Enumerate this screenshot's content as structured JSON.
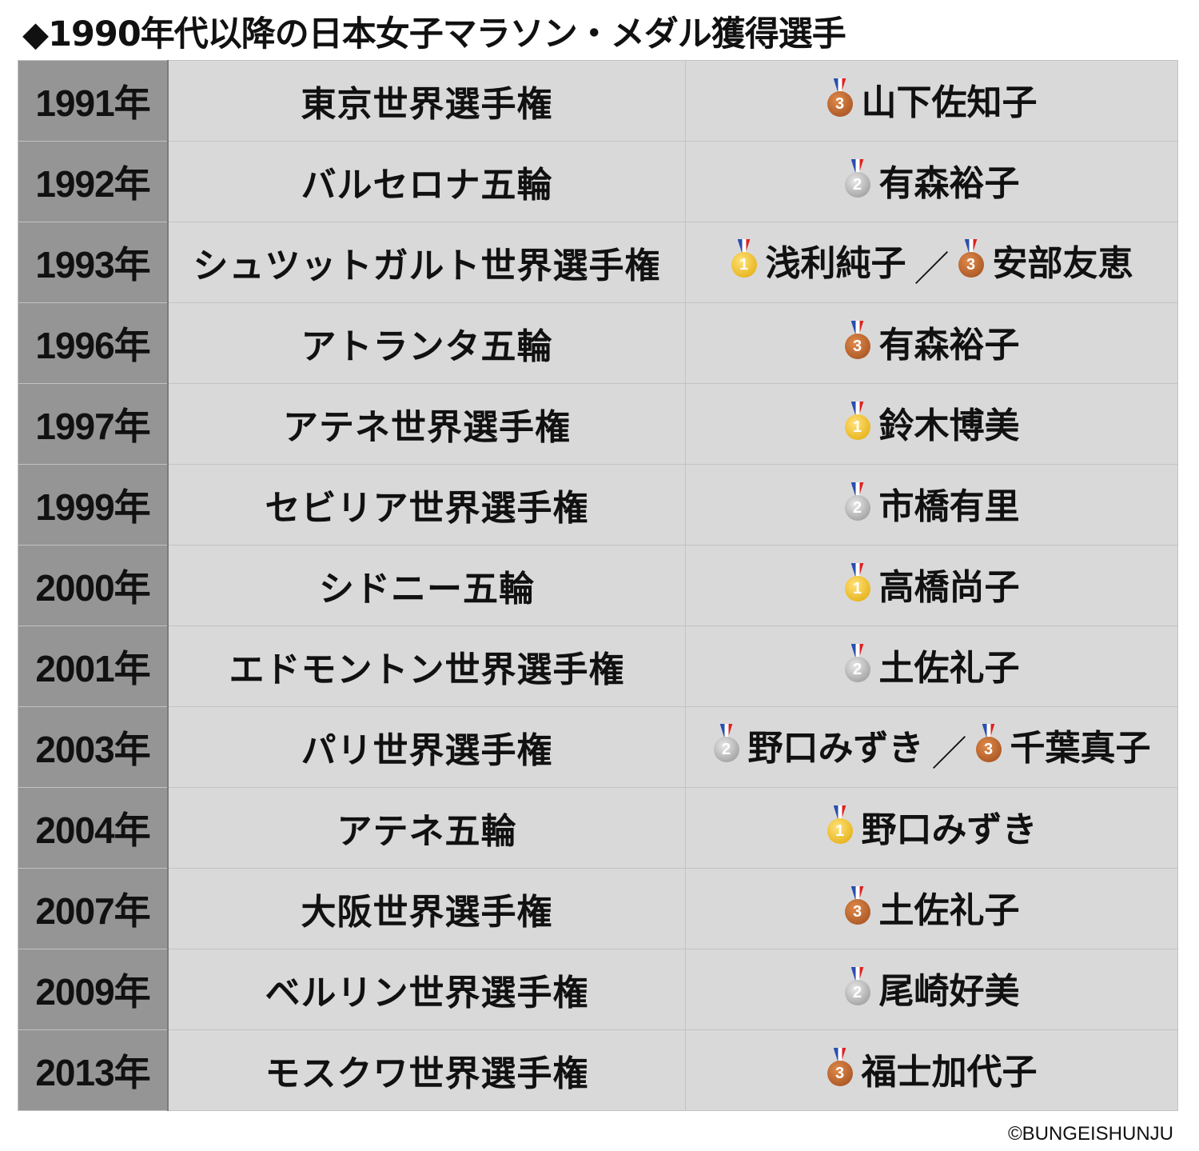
{
  "title": "◆1990年代以降の日本女子マラソン・メダル獲得選手",
  "colors": {
    "year_bg": "#959595",
    "cell_bg": "#d9d9d9",
    "gold": "#e0a600",
    "silver": "#9a9a9a",
    "bronze": "#9c4a1c"
  },
  "rows": [
    {
      "year": "1991年",
      "event": "東京世界選手権",
      "medalists": [
        {
          "medal": "bronze",
          "number": "3",
          "name": "山下佐知子"
        }
      ]
    },
    {
      "year": "1992年",
      "event": "バルセロナ五輪",
      "medalists": [
        {
          "medal": "silver",
          "number": "2",
          "name": "有森裕子"
        }
      ]
    },
    {
      "year": "1993年",
      "event": "シュツットガルト世界選手権",
      "medalists": [
        {
          "medal": "gold",
          "number": "1",
          "name": "浅利純子"
        },
        {
          "medal": "bronze",
          "number": "3",
          "name": "安部友恵"
        }
      ]
    },
    {
      "year": "1996年",
      "event": "アトランタ五輪",
      "medalists": [
        {
          "medal": "bronze",
          "number": "3",
          "name": "有森裕子"
        }
      ]
    },
    {
      "year": "1997年",
      "event": "アテネ世界選手権",
      "medalists": [
        {
          "medal": "gold",
          "number": "1",
          "name": "鈴木博美"
        }
      ]
    },
    {
      "year": "1999年",
      "event": "セビリア世界選手権",
      "medalists": [
        {
          "medal": "silver",
          "number": "2",
          "name": "市橋有里"
        }
      ]
    },
    {
      "year": "2000年",
      "event": "シドニー五輪",
      "medalists": [
        {
          "medal": "gold",
          "number": "1",
          "name": "高橋尚子"
        }
      ]
    },
    {
      "year": "2001年",
      "event": "エドモントン世界選手権",
      "medalists": [
        {
          "medal": "silver",
          "number": "2",
          "name": "土佐礼子"
        }
      ]
    },
    {
      "year": "2003年",
      "event": "パリ世界選手権",
      "medalists": [
        {
          "medal": "silver",
          "number": "2",
          "name": "野口みずき"
        },
        {
          "medal": "bronze",
          "number": "3",
          "name": "千葉真子"
        }
      ]
    },
    {
      "year": "2004年",
      "event": "アテネ五輪",
      "medalists": [
        {
          "medal": "gold",
          "number": "1",
          "name": "野口みずき"
        }
      ]
    },
    {
      "year": "2007年",
      "event": "大阪世界選手権",
      "medalists": [
        {
          "medal": "bronze",
          "number": "3",
          "name": "土佐礼子"
        }
      ]
    },
    {
      "year": "2009年",
      "event": "ベルリン世界選手権",
      "medalists": [
        {
          "medal": "silver",
          "number": "2",
          "name": "尾崎好美"
        }
      ]
    },
    {
      "year": "2013年",
      "event": "モスクワ世界選手権",
      "medalists": [
        {
          "medal": "bronze",
          "number": "3",
          "name": "福士加代子"
        }
      ]
    }
  ],
  "separator": "／",
  "credit": "©BUNGEISHUNJU"
}
